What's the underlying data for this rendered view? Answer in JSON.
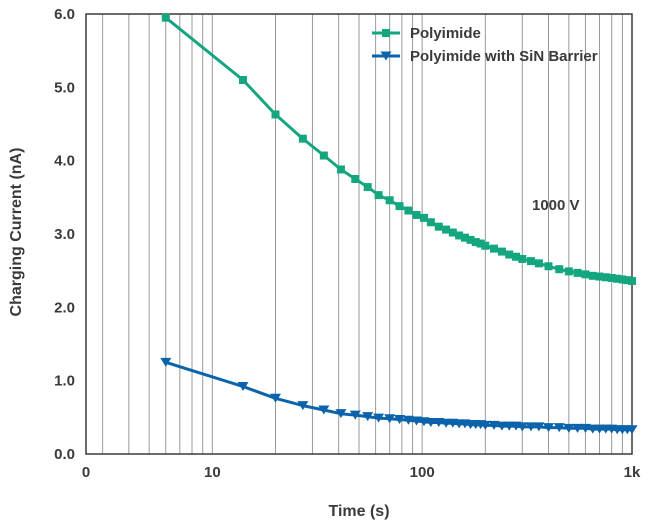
{
  "chart_data": {
    "type": "line",
    "title": "",
    "xlabel": "Time (s)",
    "ylabel": "Charging Current (nA)",
    "xscale": "log",
    "xlim": [
      2.5,
      1000
    ],
    "ylim": [
      0,
      6.0
    ],
    "x_tick_labels": [
      "0",
      "10",
      "100",
      "1k"
    ],
    "y_tick_labels": [
      "0.0",
      "1.0",
      "2.0",
      "3.0",
      "4.0",
      "5.0",
      "6.0"
    ],
    "grid": "vertical",
    "legend_position": "top-right",
    "annotation": "1000 V",
    "series": [
      {
        "name": "Polyimide",
        "color": "#13a67f",
        "marker": "square",
        "x": [
          6,
          14,
          20,
          27,
          34,
          41,
          48,
          55,
          62,
          70,
          78,
          86,
          94,
          102,
          110,
          120,
          130,
          140,
          150,
          160,
          170,
          180,
          190,
          200,
          220,
          240,
          260,
          280,
          300,
          330,
          360,
          400,
          450,
          500,
          550,
          600,
          650,
          700,
          750,
          800,
          850,
          900,
          950,
          1000
        ],
        "values": [
          5.95,
          5.1,
          4.63,
          4.3,
          4.07,
          3.88,
          3.75,
          3.64,
          3.53,
          3.46,
          3.38,
          3.32,
          3.26,
          3.22,
          3.16,
          3.1,
          3.06,
          3.02,
          2.98,
          2.95,
          2.92,
          2.89,
          2.87,
          2.84,
          2.8,
          2.76,
          2.72,
          2.69,
          2.66,
          2.63,
          2.6,
          2.56,
          2.52,
          2.49,
          2.47,
          2.45,
          2.43,
          2.42,
          2.41,
          2.4,
          2.39,
          2.38,
          2.37,
          2.36
        ]
      },
      {
        "name": "Polyimide with SiN Barrier",
        "color": "#0b63ab",
        "marker": "triangle-down",
        "x": [
          6,
          14,
          20,
          27,
          34,
          41,
          48,
          55,
          62,
          70,
          78,
          86,
          94,
          102,
          110,
          120,
          130,
          140,
          150,
          160,
          170,
          180,
          190,
          200,
          220,
          240,
          260,
          280,
          300,
          330,
          360,
          400,
          450,
          500,
          550,
          600,
          650,
          700,
          750,
          800,
          850,
          900,
          950,
          1000
        ],
        "values": [
          1.25,
          0.92,
          0.76,
          0.66,
          0.6,
          0.55,
          0.53,
          0.51,
          0.49,
          0.48,
          0.47,
          0.46,
          0.45,
          0.44,
          0.43,
          0.43,
          0.42,
          0.42,
          0.41,
          0.41,
          0.4,
          0.4,
          0.4,
          0.39,
          0.39,
          0.38,
          0.38,
          0.38,
          0.37,
          0.37,
          0.37,
          0.36,
          0.36,
          0.35,
          0.35,
          0.35,
          0.34,
          0.34,
          0.34,
          0.34,
          0.33,
          0.33,
          0.33,
          0.33
        ]
      }
    ]
  }
}
